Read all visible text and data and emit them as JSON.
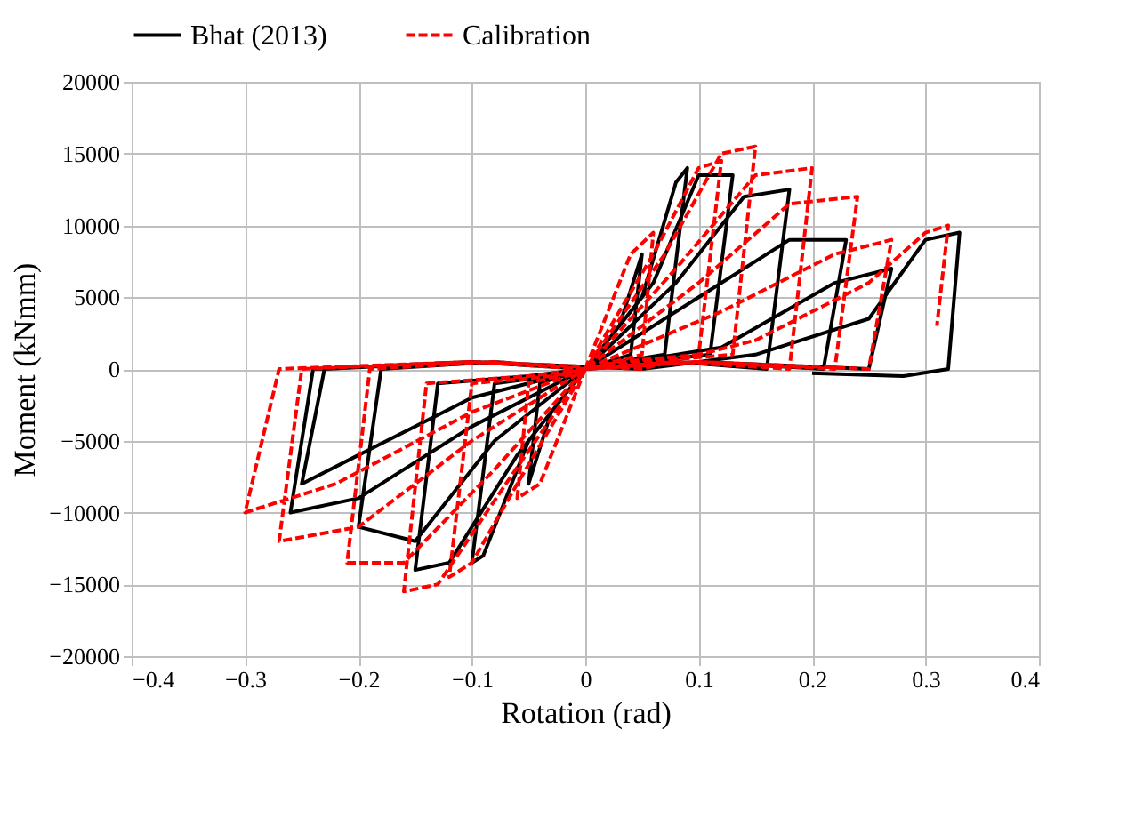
{
  "chart_data": {
    "type": "line",
    "xlabel": "Rotation (rad)",
    "ylabel": "Moment (kNmm)",
    "xlim": [
      -0.4,
      0.4
    ],
    "xticks": [
      -0.4,
      -0.3,
      -0.2,
      -0.1,
      0,
      0.1,
      0.2,
      0.3,
      0.4
    ],
    "ylim": [
      -20000,
      20000
    ],
    "yticks": [
      -20000,
      -15000,
      -10000,
      -5000,
      0,
      5000,
      10000,
      15000,
      20000
    ],
    "grid": true,
    "legend": "top",
    "marker": "none",
    "series": [
      {
        "name": "Bhat (2013)",
        "color": "#000000",
        "line_style": "solid",
        "x": [
          0,
          0.03,
          0.05,
          0.04,
          0,
          -0.03,
          -0.05,
          -0.04,
          0,
          0.05,
          0.08,
          0.09,
          0.07,
          0.03,
          0,
          -0.05,
          -0.09,
          -0.1,
          -0.08,
          -0.03,
          0,
          0.06,
          0.1,
          0.13,
          0.11,
          0.05,
          0,
          -0.06,
          -0.12,
          -0.15,
          -0.13,
          -0.05,
          0,
          0.08,
          0.14,
          0.18,
          0.16,
          0.08,
          0,
          -0.08,
          -0.15,
          -0.2,
          -0.18,
          -0.08,
          0,
          0.1,
          0.18,
          0.23,
          0.21,
          0.1,
          0,
          -0.1,
          -0.2,
          -0.26,
          -0.24,
          -0.1,
          0,
          0.12,
          0.22,
          0.27,
          0.25,
          0.1,
          0,
          -0.1,
          -0.2,
          -0.25,
          -0.23,
          -0.1,
          0.05,
          0.15,
          0.25,
          0.3,
          0.33,
          0.32,
          0.28,
          0.2
        ],
        "values": [
          0,
          3000,
          8000,
          1000,
          0,
          -3000,
          -8000,
          -1000,
          0,
          5000,
          13000,
          14000,
          1000,
          500,
          0,
          -5000,
          -13000,
          -13500,
          -1000,
          -500,
          0,
          6000,
          13500,
          13500,
          1000,
          500,
          0,
          -6000,
          -13500,
          -14000,
          -1000,
          -500,
          0,
          6000,
          12000,
          12500,
          0,
          500,
          0,
          -5000,
          -12000,
          -11000,
          0,
          500,
          0,
          5000,
          9000,
          9000,
          0,
          500,
          0,
          -4000,
          -9000,
          -10000,
          0,
          500,
          0,
          1500,
          6000,
          7000,
          0,
          500,
          0,
          -2000,
          -6000,
          -8000,
          0,
          500,
          0,
          1000,
          3500,
          9000,
          9500,
          0,
          -500,
          -300
        ]
      },
      {
        "name": "Calibration",
        "color": "#ff0000",
        "line_style": "dashed",
        "x": [
          0,
          0.04,
          0.06,
          0.05,
          0,
          -0.04,
          -0.06,
          -0.05,
          0,
          0.06,
          0.1,
          0.12,
          0.1,
          0.03,
          0,
          -0.06,
          -0.1,
          -0.12,
          -0.1,
          -0.03,
          0,
          0.07,
          0.12,
          0.15,
          0.13,
          0.05,
          0,
          -0.07,
          -0.13,
          -0.16,
          -0.14,
          -0.05,
          0,
          0.08,
          0.15,
          0.2,
          0.18,
          0.08,
          0,
          -0.08,
          -0.16,
          -0.21,
          -0.19,
          -0.08,
          0,
          0.1,
          0.18,
          0.24,
          0.22,
          0.1,
          0,
          -0.1,
          -0.2,
          -0.27,
          -0.25,
          -0.1,
          0,
          0.12,
          0.22,
          0.27,
          0.25,
          0.1,
          0,
          -0.1,
          -0.22,
          -0.3,
          -0.27,
          -0.1,
          0.05,
          0.15,
          0.25,
          0.3,
          0.32,
          0.31
        ],
        "values": [
          0,
          8000,
          9500,
          1000,
          0,
          -8000,
          -9000,
          -1000,
          0,
          8000,
          14000,
          14500,
          1000,
          500,
          0,
          -8000,
          -13500,
          -14500,
          -1000,
          -500,
          0,
          8000,
          15000,
          15500,
          1000,
          500,
          0,
          -8000,
          -15000,
          -15500,
          -1000,
          -500,
          0,
          7000,
          13500,
          14000,
          0,
          500,
          0,
          -7000,
          -13500,
          -13500,
          0,
          500,
          0,
          6000,
          11500,
          12000,
          0,
          500,
          0,
          -5000,
          -11000,
          -12000,
          0,
          500,
          0,
          4000,
          8000,
          9000,
          0,
          500,
          0,
          -3000,
          -8000,
          -10000,
          0,
          500,
          0,
          2000,
          6000,
          9500,
          10000,
          3000
        ]
      }
    ]
  }
}
